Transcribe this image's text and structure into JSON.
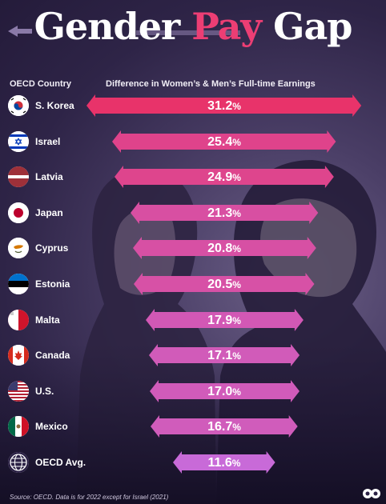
{
  "title": {
    "part1": "Gender ",
    "part2": "Pay",
    "part3": " Gap"
  },
  "headers": {
    "country": "OECD Country",
    "difference": "Difference in Women’s & Men’s Full-time Earnings"
  },
  "chart_data": {
    "type": "bar",
    "categories": [
      "S. Korea",
      "Israel",
      "Latvia",
      "Japan",
      "Cyprus",
      "Estonia",
      "Malta",
      "Canada",
      "U.S.",
      "Mexico",
      "OECD Avg."
    ],
    "values": [
      31.2,
      25.4,
      24.9,
      21.3,
      20.8,
      20.5,
      17.9,
      17.1,
      17.0,
      16.7,
      11.6
    ],
    "value_suffix": "%",
    "orientation": "horizontal",
    "xlabel": "Difference in Women’s & Men’s Full-time Earnings",
    "ylabel": "OECD Country",
    "grid": false,
    "colors": {
      "high": "#e8336a",
      "low": "#c86ad8"
    }
  },
  "flags": [
    "south-korea-flag-icon",
    "israel-flag-icon",
    "latvia-flag-icon",
    "japan-flag-icon",
    "cyprus-flag-icon",
    "estonia-flag-icon",
    "malta-flag-icon",
    "canada-flag-icon",
    "usa-flag-icon",
    "mexico-flag-icon",
    "globe-icon"
  ],
  "source": "Source: OECD. Data is for 2022 except for Israel (2021)",
  "logo_icon": "visual-capitalist-logo-icon"
}
